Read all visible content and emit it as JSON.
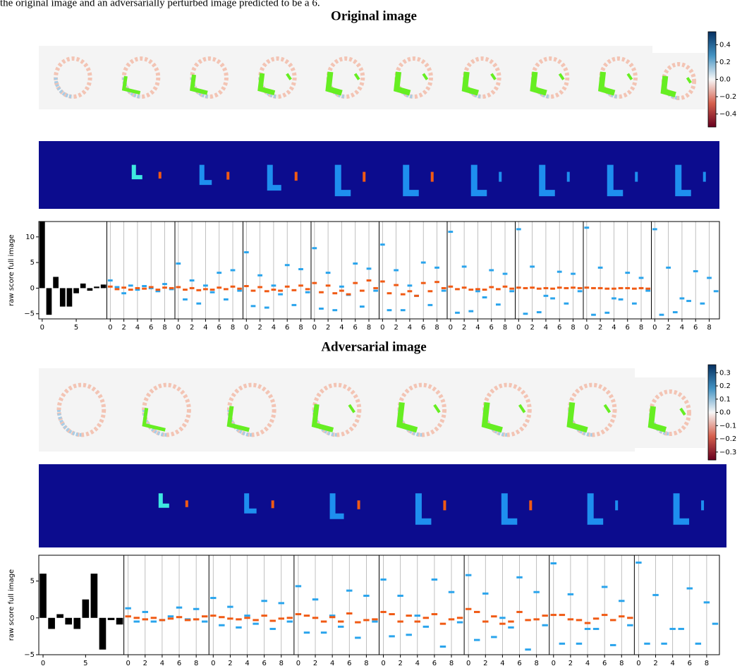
{
  "caption": "the original image and an adversarially perturbed image predicted to be a 6.",
  "sections": [
    {
      "title": "Original image",
      "colorbar": {
        "lim": [
          -0.55,
          0.55
        ],
        "ticks": [
          0.4,
          0.2,
          {
            "value": 0,
            "label": "0.0"
          },
          {
            "value": -0.2,
            "label": "−0.2"
          },
          {
            "value": -0.4,
            "label": "−0.4"
          }
        ]
      },
      "chart": {
        "type": "bar",
        "ylabel": "raw score full image",
        "ylim": [
          -6,
          13
        ],
        "yticks": [
          {
            "value": -5,
            "label": "−5"
          },
          0,
          5,
          10
        ],
        "xlim": [
          -0.5,
          9.5
        ],
        "first_xticks": [
          0,
          5
        ],
        "panel_xticks": [
          0,
          2,
          4,
          6,
          8
        ],
        "bar_color": "#000000",
        "values": [
          13,
          -5.2,
          2.2,
          -3.6,
          -3.6,
          -1,
          0.9,
          -0.5,
          0.3,
          0.7
        ],
        "panels": [
          {
            "series": [
              {
                "color": "#2aa4ec",
                "values": [
                  1.5,
                  0.2,
                  -1,
                  0.5,
                  -0.3,
                  0.4,
                  0,
                  -0.6,
                  0.8,
                  -0.2
                ]
              },
              {
                "color": "#f05a14",
                "values": [
                  0.3,
                  -0.2,
                  0.1,
                  -0.3,
                  0,
                  -0.1,
                  0.2,
                  -0.3,
                  0.1,
                  0
                ]
              }
            ]
          },
          {
            "series": [
              {
                "color": "#2aa4ec",
                "values": [
                  4.8,
                  -2.2,
                  1.5,
                  -3,
                  0.5,
                  -0.8,
                  3,
                  -2.2,
                  3.5,
                  -0.5
                ]
              },
              {
                "color": "#f05a14",
                "values": [
                  0.2,
                  -0.3,
                  0,
                  -0.4,
                  -0.2,
                  -0.3,
                  0.1,
                  -0.2,
                  0.3,
                  -0.1
                ]
              }
            ]
          },
          {
            "series": [
              {
                "color": "#2aa4ec",
                "values": [
                  7,
                  -3.5,
                  2.5,
                  -3.8,
                  0.5,
                  -1.2,
                  4.5,
                  -3.3,
                  3.7,
                  -0.8
                ]
              },
              {
                "color": "#f05a14",
                "values": [
                  0.4,
                  -0.5,
                  0.2,
                  -0.6,
                  -0.3,
                  -0.5,
                  0.3,
                  -0.4,
                  0.5,
                  -0.2
                ]
              }
            ]
          },
          {
            "series": [
              {
                "color": "#2aa4ec",
                "values": [
                  7.8,
                  -4,
                  3,
                  -4.3,
                  0.3,
                  -1.3,
                  4.8,
                  -3.6,
                  3.8,
                  -0.5
                ]
              },
              {
                "color": "#f05a14",
                "values": [
                  1,
                  -0.8,
                  0.5,
                  -1,
                  -0.5,
                  -1.2,
                  1,
                  -0.5,
                  1.5,
                  0
                ]
              }
            ]
          },
          {
            "series": [
              {
                "color": "#2aa4ec",
                "values": [
                  8.5,
                  -4.3,
                  3.5,
                  -4.3,
                  0.5,
                  -1.5,
                  5,
                  -3.3,
                  4,
                  -0.5
                ]
              },
              {
                "color": "#f05a14",
                "values": [
                  1.3,
                  -1,
                  0.6,
                  -1.2,
                  -0.6,
                  -1.5,
                  1,
                  -0.6,
                  1.2,
                  0
                ]
              }
            ]
          },
          {
            "series": [
              {
                "color": "#2aa4ec",
                "values": [
                  11,
                  -4.8,
                  4.2,
                  -4.5,
                  -0.6,
                  -1.8,
                  3.5,
                  -3.2,
                  2.8,
                  -0.6
                ]
              },
              {
                "color": "#f05a14",
                "values": [
                  0.3,
                  -0.2,
                  0.1,
                  -0.3,
                  -0.2,
                  -0.3,
                  0.2,
                  -0.2,
                  0.3,
                  -0.1
                ]
              }
            ]
          },
          {
            "series": [
              {
                "color": "#2aa4ec",
                "values": [
                  11.5,
                  -5,
                  4.2,
                  -4.7,
                  -1.5,
                  -2,
                  3.2,
                  -3,
                  2.8,
                  -0.6
                ]
              },
              {
                "color": "#f05a14",
                "values": [
                  0.1,
                  0,
                  0.1,
                  -0.1,
                  0,
                  -0.1,
                  0.1,
                  0,
                  0.1,
                  0
                ]
              }
            ]
          },
          {
            "series": [
              {
                "color": "#2aa4ec",
                "values": [
                  11.8,
                  -5.2,
                  4,
                  -4.8,
                  -2,
                  -2.2,
                  3,
                  -3,
                  2,
                  -0.5
                ]
              },
              {
                "color": "#f05a14",
                "values": [
                  0.1,
                  0,
                  0,
                  -0.1,
                  -0.1,
                  0,
                  0,
                  -0.1,
                  0,
                  -0.1
                ]
              }
            ]
          },
          {
            "series": [
              {
                "color": "#2aa4ec",
                "values": [
                  11.5,
                  -5.2,
                  4,
                  -4.7,
                  -2,
                  -2.5,
                  3.3,
                  -3,
                  2,
                  -0.6
                ]
              }
            ]
          }
        ]
      }
    },
    {
      "title": "Adversarial image",
      "colorbar": {
        "lim": [
          -0.36,
          0.36
        ],
        "ticks": [
          0.3,
          0.2,
          0.1,
          {
            "value": 0,
            "label": "0.0"
          },
          {
            "value": -0.1,
            "label": "−0.1"
          },
          {
            "value": -0.2,
            "label": "−0.2"
          },
          {
            "value": -0.3,
            "label": "−0.3"
          }
        ]
      },
      "chart": {
        "type": "bar",
        "ylabel": "raw score full image",
        "ylim": [
          -5,
          8.5
        ],
        "yticks": [
          {
            "value": -5,
            "label": "−5"
          },
          0,
          5
        ],
        "xlim": [
          -0.5,
          9.5
        ],
        "first_xticks": [
          0,
          5
        ],
        "panel_xticks": [
          0,
          2,
          4,
          6,
          8
        ],
        "bar_color": "#000000",
        "values": [
          6,
          -1.5,
          0.5,
          -0.9,
          -1.5,
          2.5,
          6,
          -4.3,
          -0.3,
          -0.9
        ],
        "panels": [
          {
            "series": [
              {
                "color": "#2aa4ec",
                "values": [
                  1.3,
                  -0.5,
                  0.8,
                  -0.5,
                  -0.3,
                  0.2,
                  1.4,
                  -0.2,
                  1.2,
                  -0.5
                ]
              },
              {
                "color": "#f05a14",
                "values": [
                  0.2,
                  0,
                  -0.2,
                  0,
                  -0.3,
                  -0.1,
                  0.1,
                  -0.3,
                  -0.2,
                  0.2
                ]
              }
            ]
          },
          {
            "series": [
              {
                "color": "#2aa4ec",
                "values": [
                  2.7,
                  -1,
                  1.5,
                  -1.3,
                  0.3,
                  -0.8,
                  2.3,
                  -1.5,
                  2,
                  -0.5
                ]
              },
              {
                "color": "#f05a14",
                "values": [
                  0.3,
                  0.1,
                  -0.1,
                  -0.2,
                  0,
                  -0.3,
                  0.3,
                  -0.4,
                  -0.1,
                  0
                ]
              }
            ]
          },
          {
            "series": [
              {
                "color": "#2aa4ec",
                "values": [
                  4.3,
                  -2,
                  2.5,
                  -2,
                  0.3,
                  -1.2,
                  3.7,
                  -2.7,
                  3,
                  -0.5
                ]
              },
              {
                "color": "#f05a14",
                "values": [
                  0.5,
                  0.3,
                  0,
                  -0.5,
                  0.1,
                  -0.5,
                  0.6,
                  -0.6,
                  -0.3,
                  -0.2
                ]
              }
            ]
          },
          {
            "series": [
              {
                "color": "#2aa4ec",
                "values": [
                  5.2,
                  -2.5,
                  3,
                  -2.3,
                  0.3,
                  -1.2,
                  5.2,
                  -3.9,
                  3.5,
                  -0.6
                ]
              },
              {
                "color": "#f05a14",
                "values": [
                  0.8,
                  0.5,
                  -0.5,
                  0.3,
                  -0.5,
                  0,
                  0.5,
                  -0.8,
                  -0.2,
                  0
                ]
              }
            ]
          },
          {
            "series": [
              {
                "color": "#2aa4ec",
                "values": [
                  5.8,
                  -3,
                  3.3,
                  -2.6,
                  0,
                  -1.3,
                  5.5,
                  -4.3,
                  3.5,
                  -1
                ]
              },
              {
                "color": "#f05a14",
                "values": [
                  1.2,
                  0.8,
                  -0.5,
                  0.2,
                  -0.8,
                  -0.5,
                  0.8,
                  -0.3,
                  -0.2,
                  0.3
                ]
              }
            ]
          },
          {
            "series": [
              {
                "color": "#2aa4ec",
                "values": [
                  7.4,
                  -3.5,
                  3.2,
                  -3.5,
                  -1.5,
                  -1.5,
                  4.2,
                  -3.7,
                  2.3,
                  -1
                ]
              },
              {
                "color": "#f05a14",
                "values": [
                  0.4,
                  0.4,
                  -0.2,
                  -0.3,
                  -0.7,
                  -0.1,
                  0.4,
                  -0.3,
                  0.2,
                  0
                ]
              }
            ]
          },
          {
            "series": [
              {
                "color": "#2aa4ec",
                "values": [
                  7.5,
                  -3.5,
                  3.1,
                  -3.5,
                  -1.5,
                  -1.5,
                  4,
                  -3.5,
                  2.1,
                  -0.8
                ]
              }
            ]
          }
        ]
      }
    }
  ]
}
